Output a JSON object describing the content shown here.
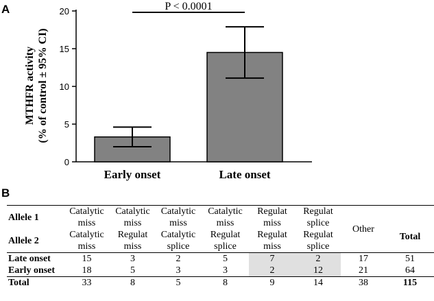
{
  "panels": {
    "a": "A",
    "b": "B"
  },
  "significance": {
    "label": "P < 0.0001"
  },
  "chart_data": {
    "type": "bar",
    "categories": [
      "Early onset",
      "Late onset"
    ],
    "values": [
      3.3,
      14.5
    ],
    "error_low": [
      2.0,
      11.1
    ],
    "error_high": [
      4.6,
      17.9
    ],
    "ylabel_line1": "MTHFR activity",
    "ylabel_line2": "(% of control ± 95% CI)",
    "ylim": [
      0,
      20
    ],
    "yticks": [
      "0",
      "5",
      "10",
      "15",
      "20"
    ],
    "bar_color": "#828282"
  },
  "table": {
    "row_labels": {
      "allele1": "Allele 1",
      "allele2": "Allele 2",
      "late": "Late onset",
      "early": "Early onset",
      "total": "Total"
    },
    "allele1": [
      [
        "Catalytic",
        "miss"
      ],
      [
        "Catalytic",
        "miss"
      ],
      [
        "Catalytic",
        "miss"
      ],
      [
        "Catalytic",
        "miss"
      ],
      [
        "Regulat",
        "miss"
      ],
      [
        "Regulat",
        "splice"
      ]
    ],
    "allele2": [
      [
        "Catalytic",
        "miss"
      ],
      [
        "Regulat",
        "miss"
      ],
      [
        "Catalytic",
        "splice"
      ],
      [
        "Regulat",
        "splice"
      ],
      [
        "Regulat",
        "miss"
      ],
      [
        "Regulat",
        "splice"
      ]
    ],
    "other_label": "Other",
    "total_label": "Total",
    "late": [
      "15",
      "3",
      "2",
      "5",
      "7",
      "2",
      "17",
      "51"
    ],
    "early": [
      "18",
      "5",
      "3",
      "3",
      "2",
      "12",
      "21",
      "64"
    ],
    "totals": [
      "33",
      "8",
      "5",
      "8",
      "9",
      "14",
      "38",
      "115"
    ],
    "shade_color": "#e0e0e0"
  }
}
